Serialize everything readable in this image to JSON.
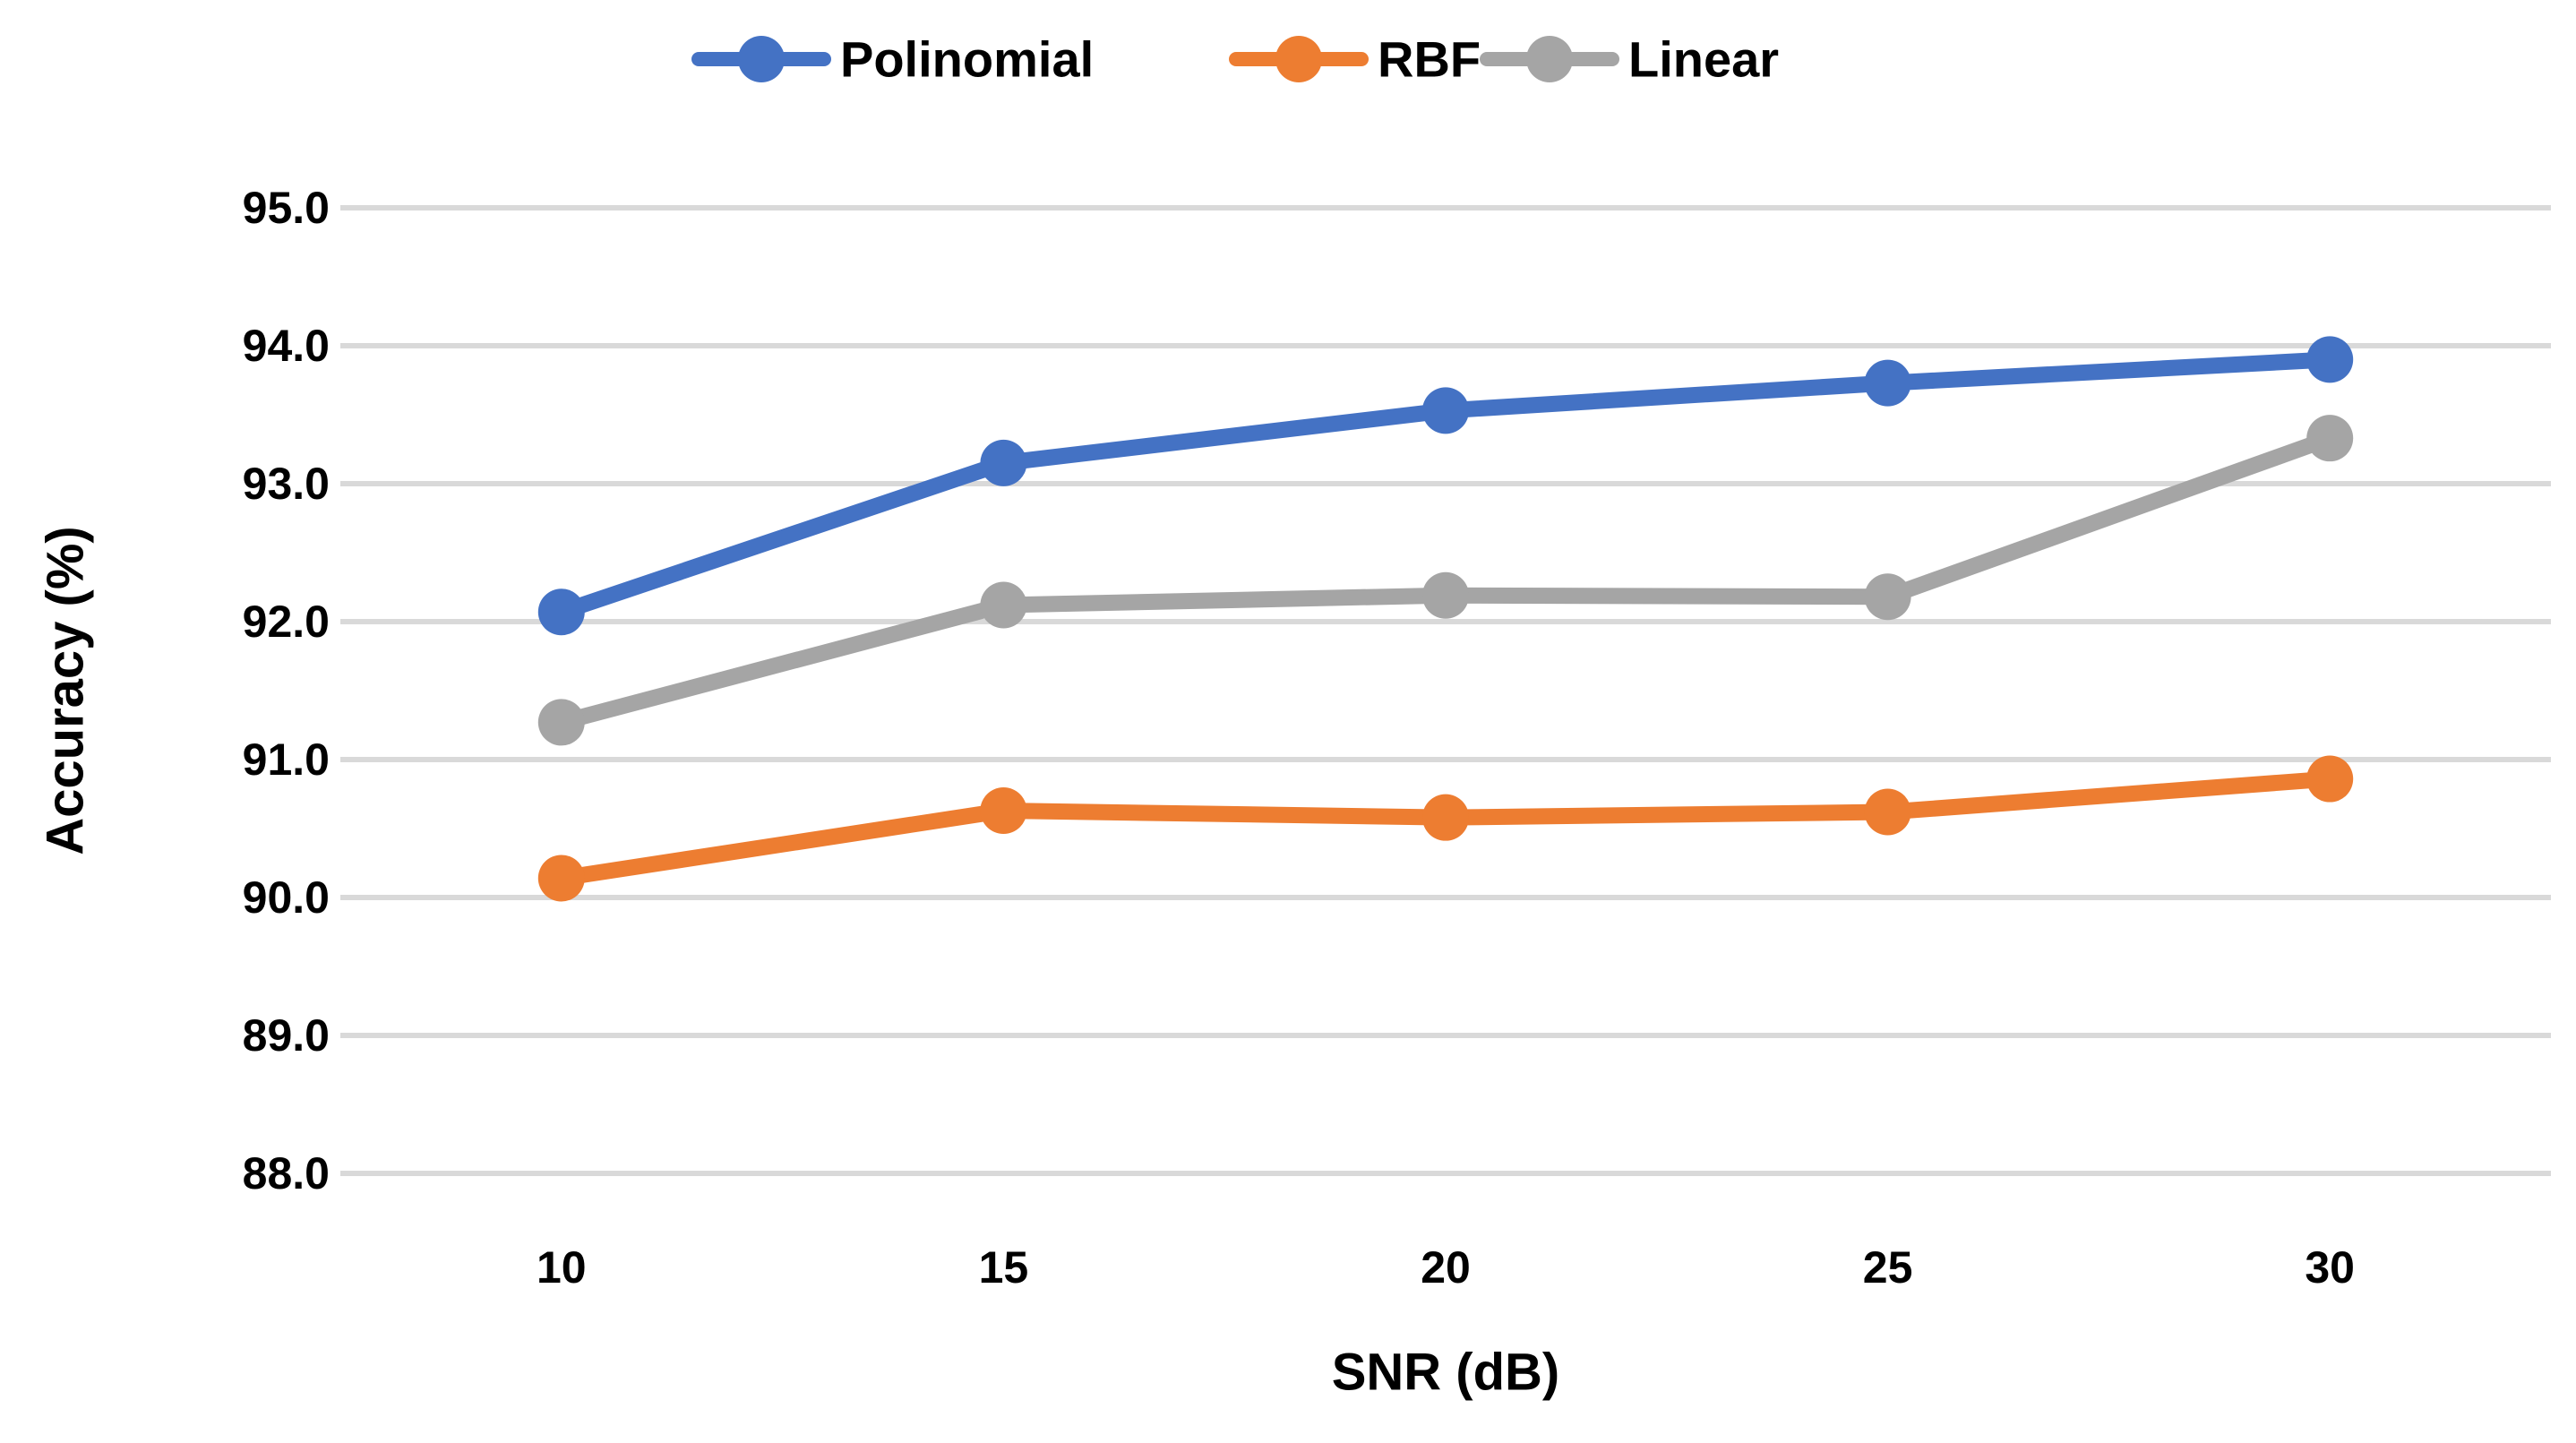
{
  "chart_data": {
    "type": "line",
    "categories": [
      10,
      15,
      20,
      25,
      30
    ],
    "series": [
      {
        "name": "Polinomial",
        "color": "#4472C4",
        "values": [
          92.07,
          93.15,
          93.53,
          93.73,
          93.9
        ]
      },
      {
        "name": "RBF",
        "color": "#ED7D31",
        "values": [
          90.14,
          90.63,
          90.58,
          90.62,
          90.86
        ]
      },
      {
        "name": "Linear",
        "color": "#A5A5A5",
        "values": [
          91.27,
          92.12,
          92.19,
          92.18,
          93.33
        ]
      }
    ],
    "title": "",
    "xlabel": "SNR (dB)",
    "ylabel": "Accuracy (%)",
    "ylim": [
      88.0,
      95.0
    ],
    "ytick_step": 1.0,
    "ytick_labels": [
      "95.0",
      "94.0",
      "93.0",
      "92.0",
      "91.0",
      "90.0",
      "89.0",
      "88.0"
    ],
    "xtick_labels": [
      "10",
      "15",
      "20",
      "25",
      "30"
    ],
    "legend": {
      "position": "top",
      "entries": [
        "Polinomial",
        "RBF",
        "Linear"
      ]
    },
    "grid": "horizontal",
    "marker": "circle"
  },
  "colors": {
    "gridline": "#D9D9D9",
    "text": "#000000",
    "background": "#FFFFFF"
  }
}
